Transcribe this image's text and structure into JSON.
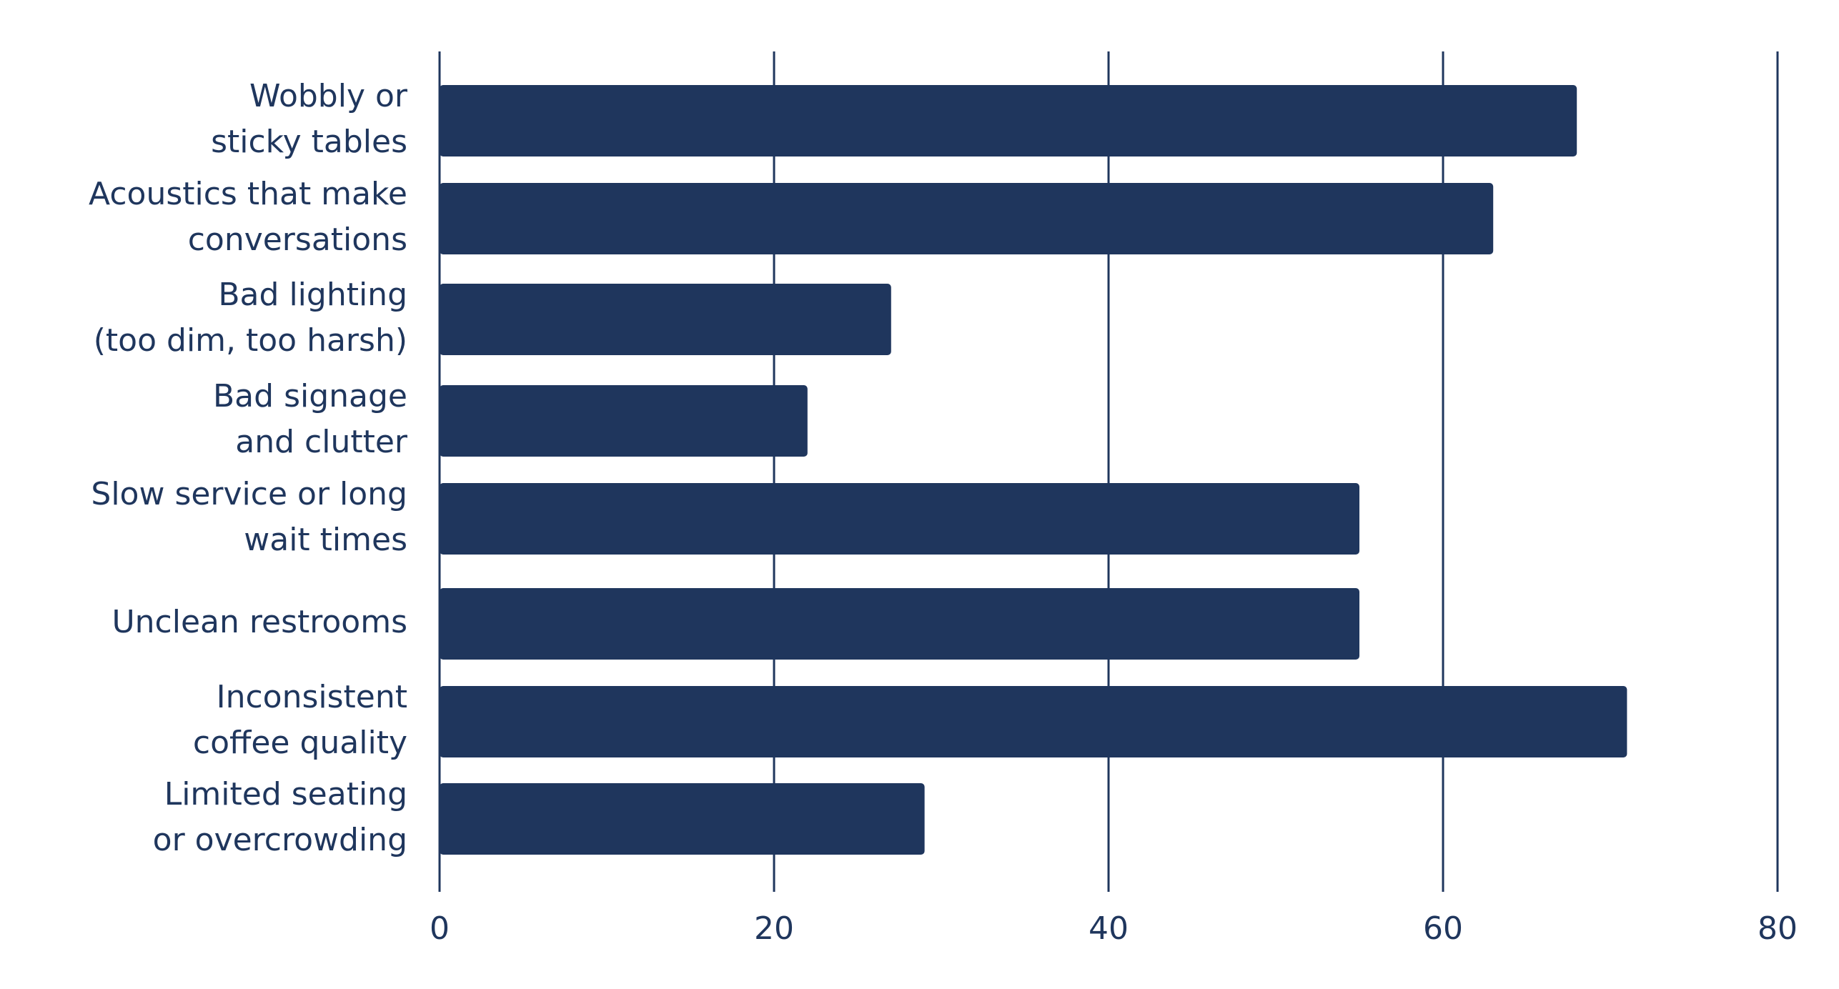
{
  "chart_data": {
    "type": "bar",
    "orientation": "horizontal",
    "categories": [
      [
        "Wobbly or",
        "sticky tables"
      ],
      [
        "Acoustics that make",
        "conversations"
      ],
      [
        "Bad lighting",
        "(too dim, too harsh)"
      ],
      [
        "Bad signage",
        "and clutter"
      ],
      [
        "Slow service or long",
        "wait times"
      ],
      [
        "Unclean restrooms"
      ],
      [
        "Inconsistent",
        "coffee quality"
      ],
      [
        "Limited seating",
        "or overcrowding"
      ]
    ],
    "values": [
      68,
      63,
      27,
      22,
      55,
      55,
      71,
      29
    ],
    "xlim": [
      0,
      80
    ],
    "xticks": [
      "0",
      "20",
      "40",
      "60",
      "80"
    ],
    "grid": true,
    "colors": {
      "bar": "#1f365d",
      "grid": "#1f365d",
      "text": "#1f365d"
    }
  }
}
